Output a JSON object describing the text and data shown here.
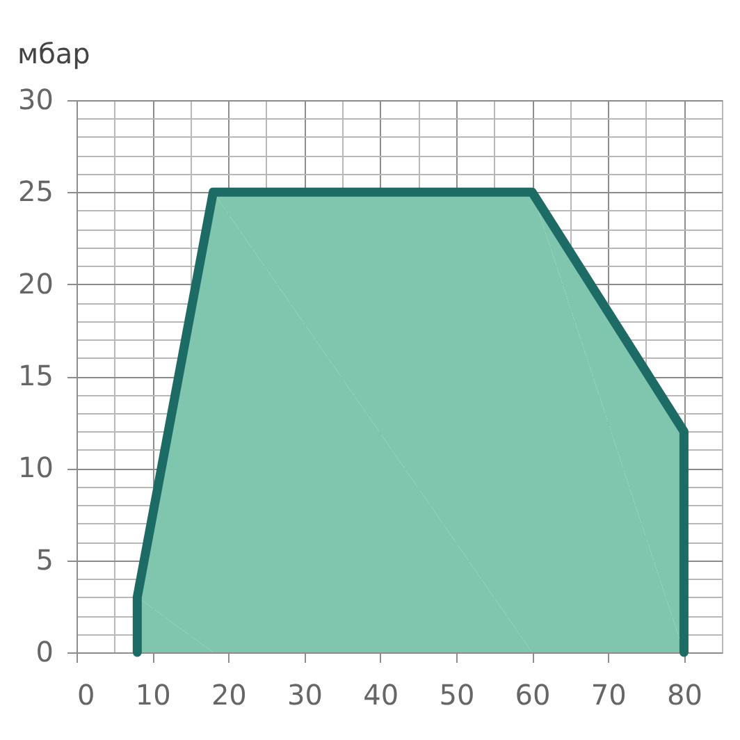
{
  "chart_data": {
    "type": "area",
    "ylabel": "мбар",
    "x": [
      8,
      8,
      18,
      60,
      80,
      80
    ],
    "values": [
      0,
      3,
      25,
      25,
      12,
      0
    ],
    "color": "#80c5ad",
    "xlim": [
      0,
      85
    ],
    "xticks": [
      0,
      {
        "value": 5,
        "label": null
      },
      10,
      {
        "value": 15,
        "label": null
      },
      20,
      {
        "value": 25,
        "label": null
      },
      30,
      {
        "value": 35,
        "label": null
      },
      40,
      {
        "value": 45,
        "label": null
      },
      50,
      {
        "value": 55,
        "label": null
      },
      60,
      {
        "value": 65,
        "label": null
      },
      70,
      {
        "value": 75,
        "label": null
      },
      80,
      {
        "value": 85,
        "label": null
      }
    ],
    "ylim": [
      0,
      30
    ],
    "yticks": [
      0,
      {
        "value": 1,
        "label": null
      },
      {
        "value": 2,
        "label": null
      },
      {
        "value": 3,
        "label": null
      },
      {
        "value": 4,
        "label": null
      },
      5,
      {
        "value": 6,
        "label": null
      },
      {
        "value": 7,
        "label": null
      },
      {
        "value": 8,
        "label": null
      },
      {
        "value": 9,
        "label": null
      },
      10,
      {
        "value": 11,
        "label": null
      },
      {
        "value": 12,
        "label": null
      },
      {
        "value": 13,
        "label": null
      },
      {
        "value": 14,
        "label": null
      },
      15,
      {
        "value": 16,
        "label": null
      },
      {
        "value": 17,
        "label": null
      },
      {
        "value": 18,
        "label": null
      },
      {
        "value": 19,
        "label": null
      },
      20,
      {
        "value": 21,
        "label": null
      },
      {
        "value": 22,
        "label": null
      },
      {
        "value": 23,
        "label": null
      },
      {
        "value": 24,
        "label": null
      },
      25,
      {
        "value": 26,
        "label": null
      },
      {
        "value": 27,
        "label": null
      },
      {
        "value": 28,
        "label": null
      },
      {
        "value": 29,
        "label": null
      },
      30
    ],
    "grid": true
  }
}
